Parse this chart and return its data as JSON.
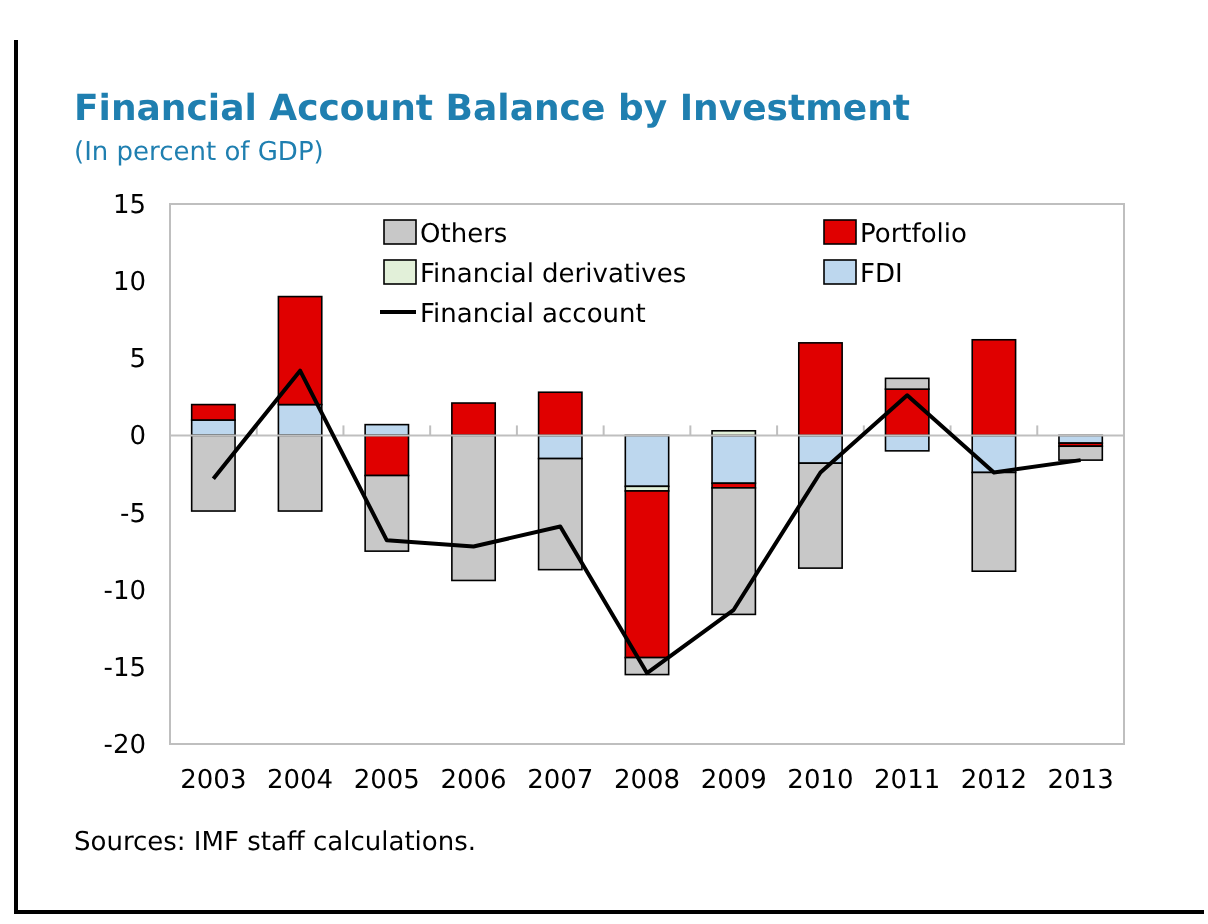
{
  "chart_data": {
    "type": "bar",
    "title": "Financial Account Balance by Investment",
    "subtitle": "(In percent of GDP)",
    "categories": [
      "2003",
      "2004",
      "2005",
      "2006",
      "2007",
      "2008",
      "2009",
      "2010",
      "2011",
      "2012",
      "2013"
    ],
    "stacked": true,
    "series": [
      {
        "name": "FDI",
        "color": "#bdd7ee",
        "values": [
          1.0,
          2.0,
          0.7,
          0,
          -1.5,
          -3.3,
          -3.1,
          -1.8,
          -1.0,
          -2.4,
          -0.5
        ]
      },
      {
        "name": "Financial derivatives",
        "color": "#e2f0d9",
        "values": [
          0,
          0,
          0,
          0,
          0,
          -0.3,
          0.3,
          0,
          0,
          0,
          0
        ]
      },
      {
        "name": "Portfolio",
        "color": "#e00000",
        "values": [
          1.0,
          7.0,
          -2.6,
          2.1,
          2.8,
          -10.8,
          -0.3,
          6.0,
          3.0,
          6.2,
          -0.2
        ]
      },
      {
        "name": "Others",
        "color": "#c8c8c8",
        "values": [
          -4.9,
          -4.9,
          -4.9,
          -9.4,
          -7.2,
          -1.1,
          -8.2,
          -6.8,
          0.7,
          -6.4,
          -0.9
        ]
      },
      {
        "name": "Financial account",
        "type": "line",
        "color": "#000000",
        "values": [
          -2.8,
          4.2,
          -6.8,
          -7.2,
          -5.9,
          -15.4,
          -11.3,
          -2.4,
          2.6,
          -2.4,
          -1.6
        ]
      }
    ],
    "ylim": [
      -20,
      15
    ],
    "yticks": [
      -20,
      -15,
      -10,
      -5,
      0,
      5,
      10,
      15
    ],
    "legend": "top",
    "annotations": [
      "Sources: IMF staff calculations."
    ]
  }
}
